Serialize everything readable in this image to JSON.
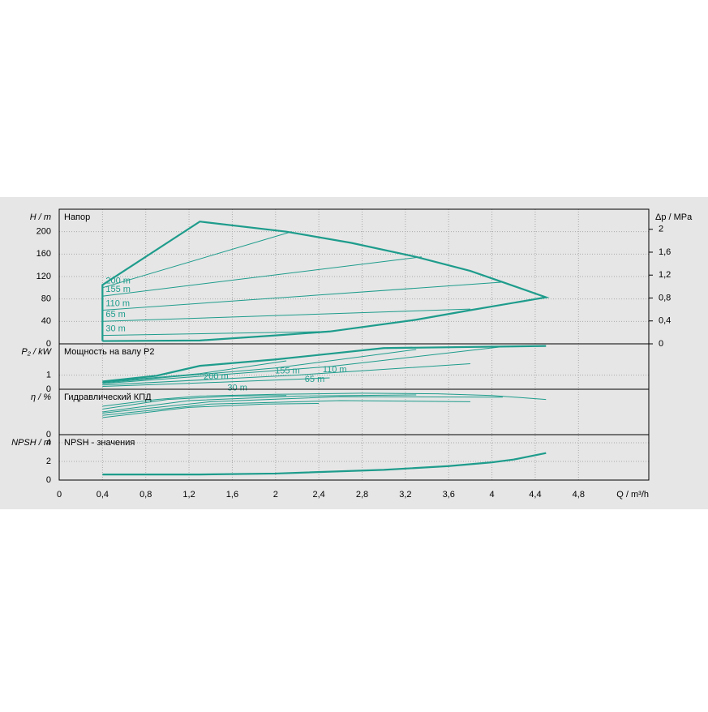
{
  "chart_data": [
    {
      "type": "line",
      "title": "Напор",
      "ylabel": "H / m",
      "y2label": "Δp / MPa",
      "color": "#1e9c8c",
      "ylim": [
        0,
        240
      ],
      "yticks": [
        0,
        40,
        80,
        120,
        160,
        200
      ],
      "y2lim": [
        0,
        2.35
      ],
      "y2ticks": [
        0,
        {
          "value": 0.4,
          "label": "0,4"
        },
        {
          "value": 0.8,
          "label": "0,8"
        },
        {
          "value": 1.2,
          "label": "1,2"
        },
        {
          "value": 1.6,
          "label": "1,6"
        },
        2
      ],
      "series": [
        {
          "x": [
            0.4,
            0.4,
            1.3,
            2.1,
            2.7,
            3.3,
            3.8,
            4.1,
            4.5,
            3.8,
            3.3,
            2.5,
            2,
            1.3,
            0.4
          ],
          "values": [
            5,
            105,
            218,
            200,
            180,
            155,
            130,
            110,
            83,
            60,
            43,
            22,
            15,
            6,
            5
          ]
        },
        {
          "name": "200 m",
          "x": [
            0.4,
            2.15
          ],
          "values": [
            100,
            200
          ]
        },
        {
          "name": "155 m",
          "x": [
            0.4,
            3.35
          ],
          "values": [
            85,
            155
          ]
        },
        {
          "name": "110 m",
          "x": [
            0.4,
            4.1
          ],
          "values": [
            60,
            110
          ]
        },
        {
          "name": "65 m",
          "x": [
            0.4,
            3.8
          ],
          "values": [
            40,
            62
          ]
        },
        {
          "name": "30 m",
          "x": [
            0.4,
            2.5
          ],
          "values": [
            15,
            22
          ]
        }
      ]
    },
    {
      "type": "line",
      "title": "Мощность на валу P2",
      "ylabel": "P₂ / kW",
      "color": "#1e9c8c",
      "ylim": [
        0,
        3.2
      ],
      "yticks": [
        0,
        1
      ],
      "series": [
        {
          "x": [
            0.4,
            0.9,
            1.3,
            2,
            3,
            4.5
          ],
          "values": [
            0.55,
            0.95,
            1.65,
            2.1,
            2.9,
            3.05
          ]
        },
        {
          "name": "200 m",
          "x": [
            0.4,
            1.3,
            2.1
          ],
          "values": [
            0.5,
            1.1,
            2.0
          ]
        },
        {
          "name": "155 m",
          "x": [
            0.4,
            2,
            3.3
          ],
          "values": [
            0.45,
            1.5,
            2.8
          ]
        },
        {
          "name": "110 m",
          "x": [
            0.4,
            2.5,
            4.1
          ],
          "values": [
            0.4,
            1.6,
            3.0
          ]
        },
        {
          "name": "65 m",
          "x": [
            0.4,
            2.2,
            3.8
          ],
          "values": [
            0.3,
            1.0,
            1.8
          ]
        },
        {
          "name": "30 m",
          "x": [
            0.4,
            1.5,
            2.5
          ],
          "values": [
            0.2,
            0.5,
            0.8
          ]
        }
      ]
    },
    {
      "type": "line",
      "title": "Гидравлический КПД",
      "ylabel": "η / %",
      "color": "#1e9c8c",
      "ylim": [
        0,
        80
      ],
      "yticks": [
        0
      ],
      "series": [
        {
          "x": [
            0.4,
            0.9,
            1.3,
            2,
            2.8,
            3.5,
            4,
            4.5
          ],
          "values": [
            50,
            62,
            68,
            71,
            73,
            72,
            69,
            62
          ]
        },
        {
          "x": [
            0.4,
            1,
            1.6,
            2.1
          ],
          "values": [
            45,
            62,
            68,
            69
          ]
        },
        {
          "x": [
            0.4,
            1.2,
            2.2,
            3.3
          ],
          "values": [
            40,
            60,
            68,
            70
          ]
        },
        {
          "x": [
            0.4,
            1.4,
            2.6,
            4.1
          ],
          "values": [
            38,
            58,
            67,
            66
          ]
        },
        {
          "x": [
            0.4,
            1.4,
            2.6,
            3.8
          ],
          "values": [
            34,
            54,
            60,
            58
          ]
        },
        {
          "x": [
            0.4,
            1.2,
            1.9,
            2.4
          ],
          "values": [
            30,
            48,
            54,
            55
          ]
        }
      ]
    },
    {
      "type": "line",
      "title": "NPSH - значения",
      "ylabel": "NPSH / m",
      "xlabel": "Q / m³/h",
      "color": "#1e9c8c",
      "ylim": [
        0,
        4.87
      ],
      "yticks": [
        0,
        2,
        4
      ],
      "xlim": [
        0,
        5.45
      ],
      "xticks": [
        0,
        {
          "value": 0.4,
          "label": "0,4"
        },
        {
          "value": 0.8,
          "label": "0,8"
        },
        {
          "value": 1.2,
          "label": "1,2"
        },
        {
          "value": 1.6,
          "label": "1,6"
        },
        2,
        {
          "value": 2.4,
          "label": "2,4"
        },
        {
          "value": 2.8,
          "label": "2,8"
        },
        {
          "value": 3.2,
          "label": "3,2"
        },
        {
          "value": 3.6,
          "label": "3,6"
        },
        4,
        {
          "value": 4.4,
          "label": "4,4"
        },
        {
          "value": 4.8,
          "label": "4,8"
        }
      ],
      "series": [
        {
          "x": [
            0.4,
            1.3,
            2,
            3,
            3.6,
            4,
            4.2,
            4.5
          ],
          "values": [
            0.6,
            0.6,
            0.7,
            1.1,
            1.5,
            1.9,
            2.2,
            2.9
          ]
        }
      ]
    }
  ]
}
